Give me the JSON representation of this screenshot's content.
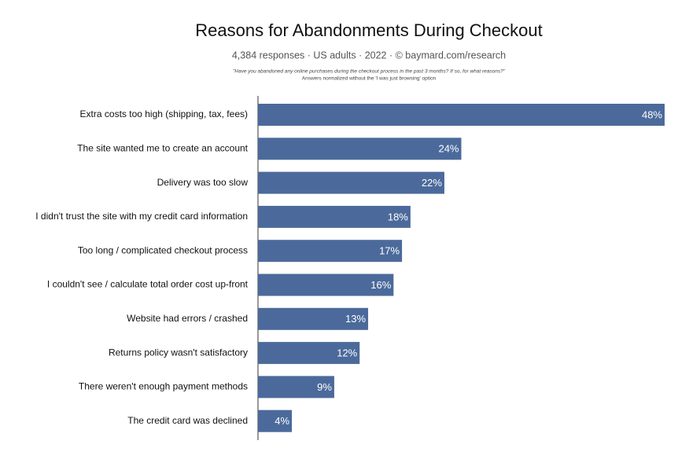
{
  "chart_data": {
    "type": "bar",
    "orientation": "horizontal",
    "title": "Reasons for Abandonments During Checkout",
    "subtitle": "4,384 responses  ·  US adults  ·  2022  ·  ©  baymard.com/research",
    "notes": [
      "\"Have you abandoned any online purchases during the checkout process in the past 3 months? If so, for what reasons?\"",
      "Answers normalized without the 'I was just browsing' option"
    ],
    "categories": [
      "Extra costs too high (shipping, tax, fees)",
      "The site wanted me to create an account",
      "Delivery was too slow",
      "I didn't trust the site with my credit card information",
      "Too long / complicated checkout process",
      "I couldn't see / calculate total order cost up-front",
      "Website had errors / crashed",
      "Returns policy wasn't satisfactory",
      "There weren't enough payment methods",
      "The credit card was declined"
    ],
    "values": [
      48,
      24,
      22,
      18,
      17,
      16,
      13,
      12,
      9,
      4
    ],
    "value_labels": [
      "48%",
      "24%",
      "22%",
      "18%",
      "17%",
      "16%",
      "13%",
      "12%",
      "9%",
      "4%"
    ],
    "color": "#4b6a9b"
  }
}
